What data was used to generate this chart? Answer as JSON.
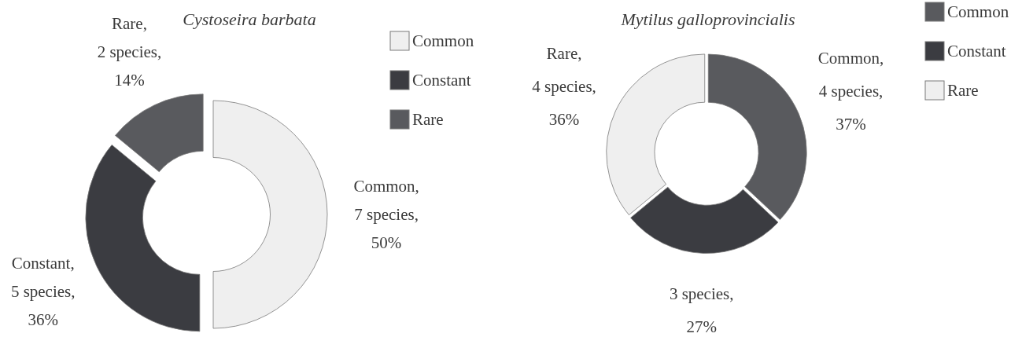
{
  "chart_data": [
    {
      "type": "donut",
      "title": "Cystoseira barbata",
      "categories": [
        "Common",
        "Constant",
        "Rare"
      ],
      "values": [
        50,
        36,
        14
      ],
      "colors": [
        "#efefef",
        "#3b3c41",
        "#595a5e"
      ],
      "value_labels": [
        "Common,\n7 species,\n50%",
        "Constant,\n5 species,\n36%",
        "Rare,\n2 species,\n14%"
      ],
      "legend": "top right"
    },
    {
      "type": "donut",
      "title": "Mytilus galloprovincialis",
      "categories": [
        "Common",
        "Constant",
        "Rare"
      ],
      "values": [
        37,
        27,
        36
      ],
      "colors": [
        "#595a5e",
        "#3b3c41",
        "#efefef"
      ],
      "value_labels": [
        "Common,\n4 species,\n37%",
        "3 species,\n27%",
        "Rare,\n4 species,\n36%"
      ],
      "legend": "top right"
    }
  ]
}
